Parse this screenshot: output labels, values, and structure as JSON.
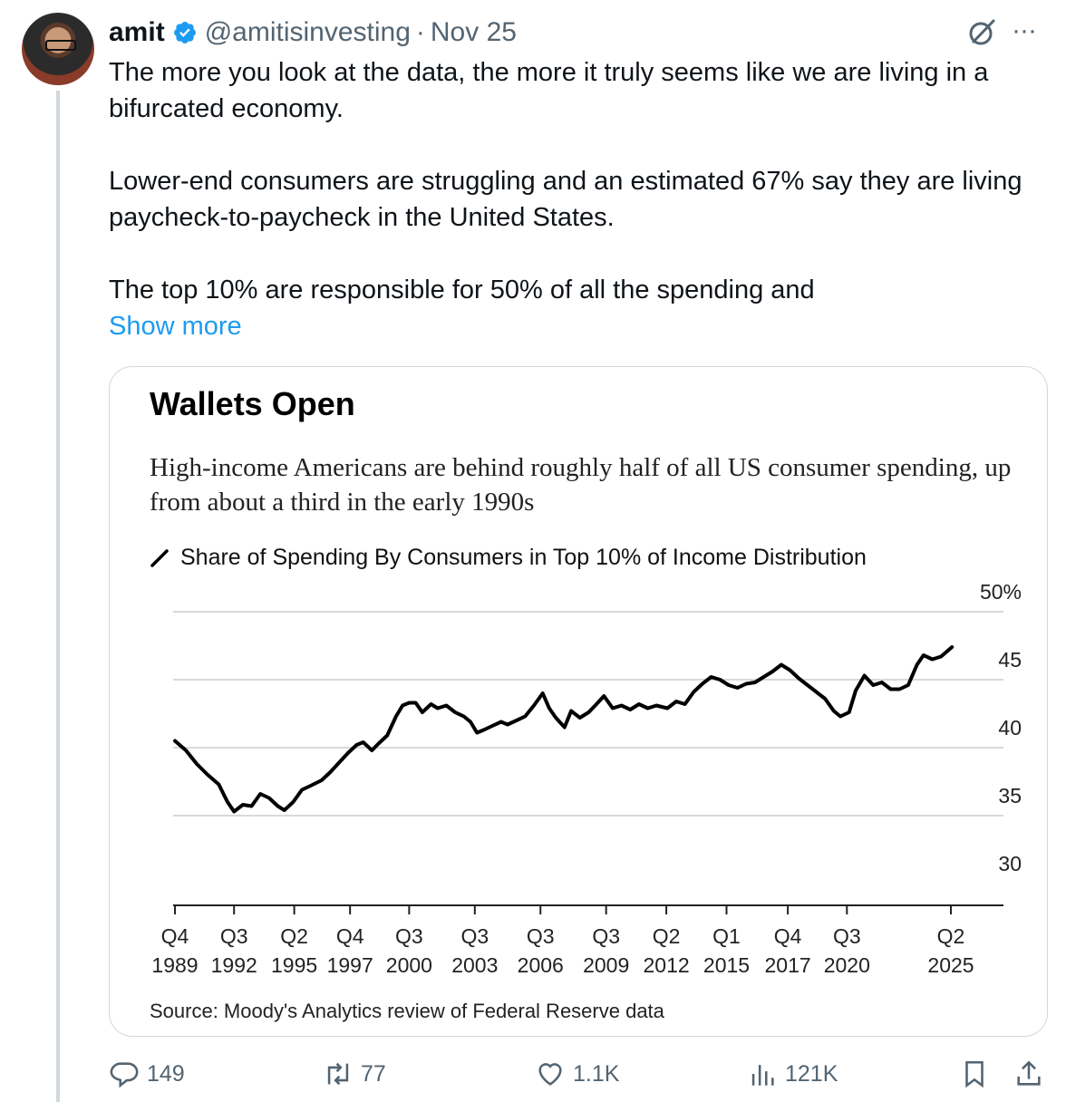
{
  "tweet": {
    "author_name": "amit",
    "handle": "@amitisinvesting",
    "separator": "·",
    "date": "Nov 25",
    "paragraphs": [
      "The more you look at the data, the more it truly seems like we are living in a bifurcated economy.",
      "Lower-end consumers are struggling and an estimated 67% say they are living paycheck-to-paycheck in the United States.",
      "The top 10% are responsible for 50% of all the spending and"
    ],
    "show_more": "Show more",
    "icons": {
      "avatar": "profile-photo",
      "verified": "verified-badge-icon",
      "grok": "grok-icon",
      "more": "more-options-icon"
    }
  },
  "colors": {
    "link": "#1d9bf0",
    "muted": "#536471",
    "verified": "#1d9bf0",
    "line": "#000000"
  },
  "chart_data": {
    "type": "line",
    "title": "Wallets Open",
    "subtitle": "High-income Americans are behind roughly half of all US consumer spending, up from about a third in the early 1990s",
    "series": [
      {
        "name": "Share of Spending By Consumers in Top 10% of Income Distribution",
        "points": [
          [
            1989.8,
            40.5
          ],
          [
            1990.3,
            39.8
          ],
          [
            1990.8,
            38.8
          ],
          [
            1991.3,
            38.0
          ],
          [
            1991.8,
            37.3
          ],
          [
            1992.2,
            36.0
          ],
          [
            1992.5,
            35.3
          ],
          [
            1992.9,
            35.8
          ],
          [
            1993.3,
            35.7
          ],
          [
            1993.7,
            36.6
          ],
          [
            1994.1,
            36.3
          ],
          [
            1994.5,
            35.7
          ],
          [
            1994.8,
            35.4
          ],
          [
            1995.2,
            36.0
          ],
          [
            1995.6,
            36.9
          ],
          [
            1996.0,
            37.2
          ],
          [
            1996.5,
            37.6
          ],
          [
            1996.9,
            38.2
          ],
          [
            1997.3,
            38.9
          ],
          [
            1997.7,
            39.6
          ],
          [
            1998.1,
            40.2
          ],
          [
            1998.4,
            40.4
          ],
          [
            1998.8,
            39.8
          ],
          [
            1999.1,
            40.3
          ],
          [
            1999.5,
            40.9
          ],
          [
            1999.9,
            42.3
          ],
          [
            2000.2,
            43.1
          ],
          [
            2000.5,
            43.3
          ],
          [
            2000.8,
            43.3
          ],
          [
            2001.1,
            42.6
          ],
          [
            2001.5,
            43.2
          ],
          [
            2001.8,
            42.9
          ],
          [
            2002.2,
            43.1
          ],
          [
            2002.6,
            42.6
          ],
          [
            2003.0,
            42.3
          ],
          [
            2003.3,
            41.9
          ],
          [
            2003.6,
            41.1
          ],
          [
            2003.9,
            41.3
          ],
          [
            2004.3,
            41.6
          ],
          [
            2004.7,
            41.9
          ],
          [
            2005.0,
            41.7
          ],
          [
            2005.4,
            42.0
          ],
          [
            2005.8,
            42.3
          ],
          [
            2006.2,
            43.1
          ],
          [
            2006.6,
            44.0
          ],
          [
            2006.9,
            42.9
          ],
          [
            2007.2,
            42.2
          ],
          [
            2007.6,
            41.5
          ],
          [
            2007.9,
            42.7
          ],
          [
            2008.3,
            42.2
          ],
          [
            2008.7,
            42.6
          ],
          [
            2009.0,
            43.1
          ],
          [
            2009.4,
            43.8
          ],
          [
            2009.8,
            42.9
          ],
          [
            2010.2,
            43.1
          ],
          [
            2010.6,
            42.8
          ],
          [
            2011.0,
            43.2
          ],
          [
            2011.4,
            42.9
          ],
          [
            2011.8,
            43.1
          ],
          [
            2012.3,
            42.9
          ],
          [
            2012.7,
            43.4
          ],
          [
            2013.1,
            43.2
          ],
          [
            2013.5,
            44.1
          ],
          [
            2013.9,
            44.7
          ],
          [
            2014.3,
            45.2
          ],
          [
            2014.7,
            45.0
          ],
          [
            2015.1,
            44.6
          ],
          [
            2015.5,
            44.4
          ],
          [
            2015.9,
            44.7
          ],
          [
            2016.3,
            44.8
          ],
          [
            2016.7,
            45.2
          ],
          [
            2017.1,
            45.6
          ],
          [
            2017.5,
            46.1
          ],
          [
            2017.9,
            45.7
          ],
          [
            2018.3,
            45.1
          ],
          [
            2018.7,
            44.6
          ],
          [
            2019.1,
            44.1
          ],
          [
            2019.5,
            43.6
          ],
          [
            2019.9,
            42.7
          ],
          [
            2020.2,
            42.3
          ],
          [
            2020.6,
            42.6
          ],
          [
            2020.9,
            44.2
          ],
          [
            2021.3,
            45.3
          ],
          [
            2021.7,
            44.6
          ],
          [
            2022.1,
            44.8
          ],
          [
            2022.5,
            44.3
          ],
          [
            2022.9,
            44.3
          ],
          [
            2023.3,
            44.6
          ],
          [
            2023.7,
            46.1
          ],
          [
            2024.0,
            46.8
          ],
          [
            2024.4,
            46.5
          ],
          [
            2024.8,
            46.7
          ],
          [
            2025.3,
            47.4
          ]
        ]
      }
    ],
    "ylim": [
      30,
      50
    ],
    "y_ticks": [
      "50%",
      "45",
      "40",
      "35",
      "30"
    ],
    "y_tick_values": [
      50,
      45,
      40,
      35,
      30
    ],
    "x_ticks": [
      {
        "quarter": "Q4",
        "year": "1989",
        "x": 1989.8
      },
      {
        "quarter": "Q3",
        "year": "1992",
        "x": 1992.5
      },
      {
        "quarter": "Q2",
        "year": "1995",
        "x": 1995.25
      },
      {
        "quarter": "Q4",
        "year": "1997",
        "x": 1997.8
      },
      {
        "quarter": "Q3",
        "year": "2000",
        "x": 2000.5
      },
      {
        "quarter": "Q3",
        "year": "2003",
        "x": 2003.5
      },
      {
        "quarter": "Q3",
        "year": "2006",
        "x": 2006.5
      },
      {
        "quarter": "Q3",
        "year": "2009",
        "x": 2009.5
      },
      {
        "quarter": "Q2",
        "year": "2012",
        "x": 2012.25
      },
      {
        "quarter": "Q1",
        "year": "2015",
        "x": 2015.0
      },
      {
        "quarter": "Q4",
        "year": "2017",
        "x": 2017.8
      },
      {
        "quarter": "Q3",
        "year": "2020",
        "x": 2020.5
      },
      {
        "quarter": "Q2",
        "year": "2025",
        "x": 2025.25
      }
    ],
    "grid": true,
    "y_axis_side": "right",
    "source": "Source: Moody's Analytics review of Federal Reserve data"
  },
  "actions": {
    "replies": {
      "icon": "reply-icon",
      "count": "149"
    },
    "reposts": {
      "icon": "repost-icon",
      "count": "77"
    },
    "likes": {
      "icon": "like-icon",
      "count": "1.1K"
    },
    "views": {
      "icon": "views-icon",
      "count": "121K"
    },
    "bookmark": {
      "icon": "bookmark-icon"
    },
    "share": {
      "icon": "share-icon"
    }
  }
}
